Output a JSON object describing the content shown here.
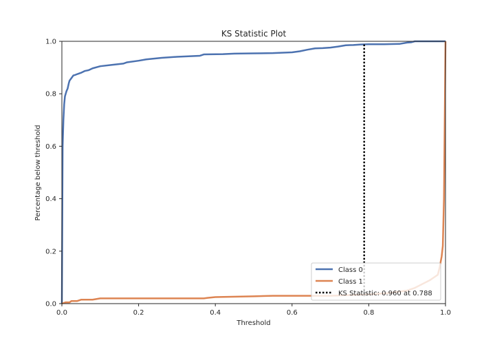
{
  "chart_data": {
    "type": "line",
    "title": "KS Statistic Plot",
    "xlabel": "Threshold",
    "ylabel": "Percentage below threshold",
    "xlim": [
      0,
      1
    ],
    "ylim": [
      0,
      1
    ],
    "xticks": [
      "0.0",
      "0.2",
      "0.4",
      "0.6",
      "0.8",
      "1.0"
    ],
    "yticks": [
      "0.0",
      "0.2",
      "0.4",
      "0.6",
      "0.8",
      "1.0"
    ],
    "grid": false,
    "legend_position": "lower-right",
    "series": [
      {
        "name": "Class 0",
        "color": "#4c72b0",
        "x": [
          0.0,
          0.001,
          0.002,
          0.004,
          0.006,
          0.008,
          0.01,
          0.012,
          0.015,
          0.018,
          0.02,
          0.025,
          0.03,
          0.035,
          0.04,
          0.05,
          0.06,
          0.07,
          0.08,
          0.1,
          0.13,
          0.16,
          0.17,
          0.2,
          0.22,
          0.26,
          0.3,
          0.36,
          0.37,
          0.42,
          0.45,
          0.5,
          0.55,
          0.6,
          0.62,
          0.64,
          0.66,
          0.68,
          0.7,
          0.72,
          0.74,
          0.76,
          0.78,
          0.8,
          0.84,
          0.88,
          0.9,
          0.91,
          0.92,
          0.96,
          1.0
        ],
        "y": [
          0.0,
          0.3,
          0.6,
          0.7,
          0.76,
          0.79,
          0.8,
          0.81,
          0.82,
          0.84,
          0.85,
          0.86,
          0.87,
          0.872,
          0.875,
          0.88,
          0.887,
          0.89,
          0.897,
          0.905,
          0.91,
          0.915,
          0.92,
          0.926,
          0.931,
          0.937,
          0.941,
          0.945,
          0.95,
          0.951,
          0.953,
          0.954,
          0.955,
          0.958,
          0.962,
          0.968,
          0.973,
          0.974,
          0.976,
          0.98,
          0.985,
          0.986,
          0.988,
          0.989,
          0.989,
          0.99,
          0.995,
          0.996,
          1.0,
          1.0,
          1.0
        ]
      },
      {
        "name": "Class 1",
        "color": "#dd8452",
        "x": [
          0.0,
          0.01,
          0.02,
          0.025,
          0.04,
          0.05,
          0.08,
          0.1,
          0.2,
          0.3,
          0.37,
          0.38,
          0.4,
          0.5,
          0.55,
          0.6,
          0.7,
          0.8,
          0.85,
          0.9,
          0.92,
          0.94,
          0.96,
          0.97,
          0.98,
          0.985,
          0.99,
          0.993,
          0.996,
          0.998,
          1.0
        ],
        "y": [
          0.0,
          0.005,
          0.005,
          0.01,
          0.01,
          0.015,
          0.015,
          0.02,
          0.02,
          0.02,
          0.02,
          0.022,
          0.025,
          0.028,
          0.03,
          0.03,
          0.03,
          0.035,
          0.04,
          0.05,
          0.06,
          0.075,
          0.09,
          0.1,
          0.11,
          0.14,
          0.18,
          0.22,
          0.4,
          0.7,
          1.0
        ]
      }
    ],
    "ks_statistic": {
      "label": "KS Statistic: 0.960 at 0.788",
      "threshold": 0.788,
      "y_low": 0.028,
      "y_high": 0.988
    },
    "colors": {
      "text": "#262626",
      "spine": "#262626",
      "ks_line": "#000000"
    }
  }
}
